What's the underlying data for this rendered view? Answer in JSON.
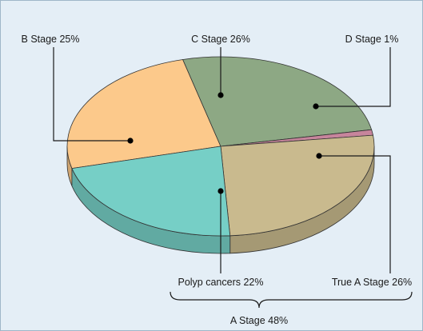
{
  "chart_data": {
    "type": "pie",
    "title": "",
    "style": "3d-perspective",
    "slices": [
      {
        "label": "B Stage 25%",
        "value": 25,
        "color": "#fcc98b"
      },
      {
        "label": "C Stage 26%",
        "value": 26,
        "color": "#8da884"
      },
      {
        "label": "D Stage 1%",
        "value": 1,
        "color": "#c7859c"
      },
      {
        "label": "True A Stage 26%",
        "value": 26,
        "color": "#c9ba8e"
      },
      {
        "label": "Polyp cancers 22%",
        "value": 22,
        "color": "#76cfc6"
      }
    ],
    "group_annotation": {
      "label": "A Stage 48%",
      "members": [
        "Polyp cancers 22%",
        "True A Stage 26%"
      ]
    },
    "legend": "none"
  }
}
